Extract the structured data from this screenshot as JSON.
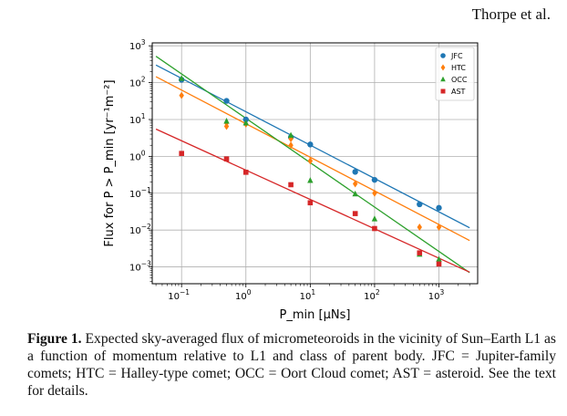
{
  "header": {
    "author": "Thorpe et al."
  },
  "caption": {
    "label": "Figure 1.",
    "text": "Expected sky-averaged flux of micrometeoroids in the vicinity of Sun–Earth L1 as a function of momentum relative to L1 and class of parent body. JFC = Jupiter-family comets; HTC = Halley-type comet; OCC = Oort Cloud comet; AST = asteroid. See the text for details."
  },
  "chart_data": {
    "type": "scatter",
    "x_scale": "log",
    "y_scale": "log",
    "xlim": [
      0.035,
      4000
    ],
    "ylim": [
      0.00035,
      1200
    ],
    "grid": true,
    "legend_position": "upper-right",
    "xlabel": "P_min [μNs]",
    "ylabel": "Flux for P > P_min [yr⁻¹m⁻²]",
    "x_ticks": [
      {
        "value": 0.1,
        "mantissa": "10",
        "exp": "−1"
      },
      {
        "value": 1,
        "mantissa": "10",
        "exp": "0"
      },
      {
        "value": 10,
        "mantissa": "10",
        "exp": "1"
      },
      {
        "value": 100,
        "mantissa": "10",
        "exp": "2"
      },
      {
        "value": 1000,
        "mantissa": "10",
        "exp": "3"
      }
    ],
    "y_ticks": [
      {
        "value": 0.001,
        "mantissa": "10",
        "exp": "−3"
      },
      {
        "value": 0.01,
        "mantissa": "10",
        "exp": "−2"
      },
      {
        "value": 0.1,
        "mantissa": "10",
        "exp": "−1"
      },
      {
        "value": 1,
        "mantissa": "10",
        "exp": "0"
      },
      {
        "value": 10,
        "mantissa": "10",
        "exp": "1"
      },
      {
        "value": 100,
        "mantissa": "10",
        "exp": "2"
      },
      {
        "value": 1000,
        "mantissa": "10",
        "exp": "3"
      }
    ],
    "series": [
      {
        "name": "JFC",
        "color": "#1f77b4",
        "marker": "circle",
        "points": [
          [
            0.1,
            120
          ],
          [
            0.5,
            32
          ],
          [
            1,
            10
          ],
          [
            5,
            3.3
          ],
          [
            10,
            2.1
          ],
          [
            50,
            0.38
          ],
          [
            100,
            0.23
          ],
          [
            500,
            0.05
          ],
          [
            1000,
            0.04
          ]
        ],
        "fit": [
          [
            0.04,
            300
          ],
          [
            3000,
            0.0115
          ]
        ]
      },
      {
        "name": "HTC",
        "color": "#ff7f0e",
        "marker": "diamond",
        "points": [
          [
            0.1,
            45
          ],
          [
            0.5,
            6.5
          ],
          [
            0.5,
            8
          ],
          [
            1,
            7.5
          ],
          [
            5,
            3.0
          ],
          [
            5,
            2.0
          ],
          [
            10,
            0.75
          ],
          [
            50,
            0.18
          ],
          [
            100,
            0.1
          ],
          [
            500,
            0.012
          ],
          [
            1000,
            0.012
          ]
        ],
        "fit": [
          [
            0.04,
            145
          ],
          [
            3000,
            0.0052
          ]
        ]
      },
      {
        "name": "OCC",
        "color": "#2ca02c",
        "marker": "triangle",
        "points": [
          [
            0.1,
            130
          ],
          [
            0.5,
            9
          ],
          [
            1,
            8
          ],
          [
            5,
            3.7
          ],
          [
            10,
            0.22
          ],
          [
            50,
            0.095
          ],
          [
            100,
            0.02
          ],
          [
            500,
            0.0022
          ],
          [
            1000,
            0.0016
          ]
        ],
        "fit": [
          [
            0.04,
            520
          ],
          [
            3000,
            0.0007
          ]
        ]
      },
      {
        "name": "AST",
        "color": "#d62728",
        "marker": "square",
        "points": [
          [
            0.1,
            1.2
          ],
          [
            0.5,
            0.85
          ],
          [
            1,
            0.37
          ],
          [
            5,
            0.17
          ],
          [
            10,
            0.055
          ],
          [
            50,
            0.028
          ],
          [
            100,
            0.011
          ],
          [
            500,
            0.0024
          ],
          [
            1000,
            0.0012
          ]
        ],
        "fit": [
          [
            0.04,
            5.5
          ],
          [
            3000,
            0.00072
          ]
        ]
      }
    ]
  }
}
